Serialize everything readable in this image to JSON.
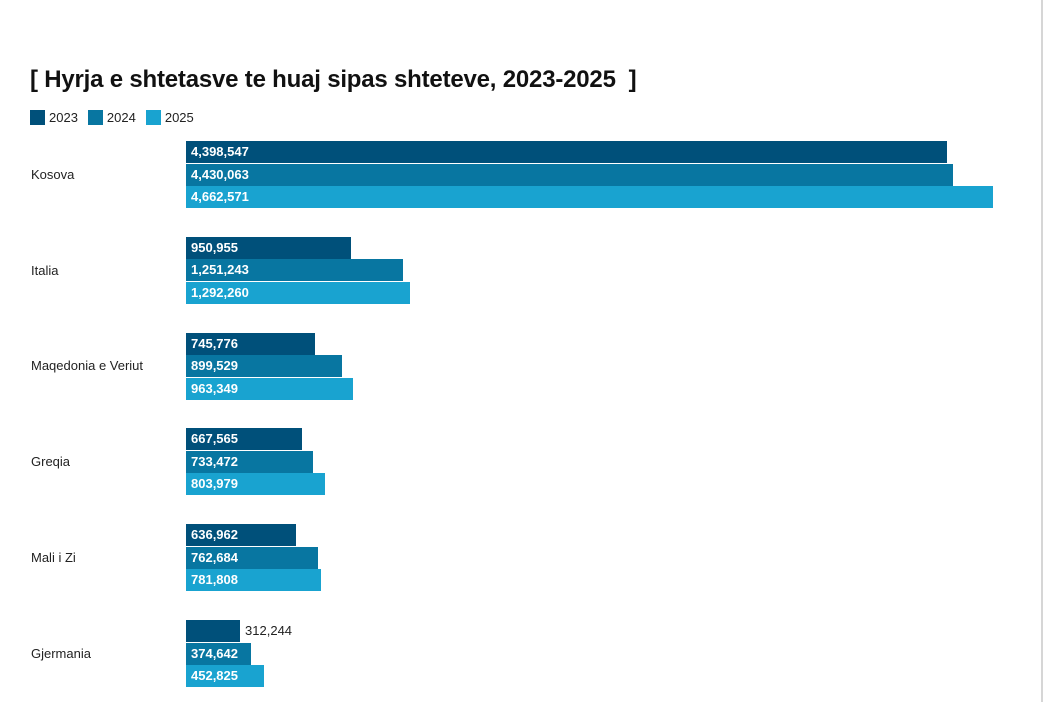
{
  "chart_data": {
    "type": "bar",
    "orientation": "horizontal",
    "title": "[ Hyrja e shtetasve te huaj sipas shteteve, 2023-2025  ]",
    "categories": [
      "Kosova",
      "Italia",
      "Maqedonia e Veriut",
      "Greqia",
      "Mali i Zi",
      "Gjermania"
    ],
    "series": [
      {
        "name": "2023",
        "color": "#00507a",
        "values": [
          4398547,
          950955,
          745776,
          667565,
          636962,
          312244
        ],
        "labels": [
          "4,398,547",
          "950,955",
          "745,776",
          "667,565",
          "636,962",
          "312,244"
        ]
      },
      {
        "name": "2024",
        "color": "#0876a1",
        "values": [
          4430063,
          1251243,
          899529,
          733472,
          762684,
          374642
        ],
        "labels": [
          "4,430,063",
          "1,251,243",
          "899,529",
          "733,472",
          "762,684",
          "374,642"
        ]
      },
      {
        "name": "2025",
        "color": "#19a3d0",
        "values": [
          4662571,
          1292260,
          963349,
          803979,
          781808,
          452825
        ],
        "labels": [
          "4,662,571",
          "1,292,260",
          "963,349",
          "803,979",
          "781,808",
          "452,825"
        ]
      }
    ],
    "legend": "top-left",
    "grid": false,
    "xlim": [
      0,
      4662571
    ]
  }
}
